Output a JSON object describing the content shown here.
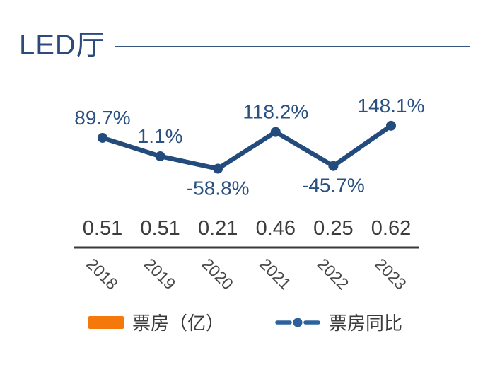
{
  "title": "LED厅",
  "colors": {
    "title_color": "#2C4B7C",
    "rule_color": "#35567F",
    "line_color": "#234C7D",
    "pct_color": "#2A5080",
    "value_color": "#3D3D3D",
    "axis_color": "#3A3A3A",
    "year_color": "#474747",
    "legend_text": "#3B3B3B",
    "bar_swatch": "#F5780A",
    "legend_line": "#2B629B"
  },
  "legend": {
    "bar_label": "票房（亿）",
    "line_label": "票房同比"
  },
  "chart_data": {
    "type": "combo",
    "title": "LED厅",
    "categories": [
      "2018",
      "2019",
      "2020",
      "2021",
      "2022",
      "2023"
    ],
    "series": [
      {
        "name": "票房（亿）",
        "type": "bar",
        "unit": "亿",
        "color": "#F5780A",
        "values": [
          0.51,
          0.51,
          0.21,
          0.46,
          0.25,
          0.62
        ],
        "labels": [
          "0.51",
          "0.51",
          "0.21",
          "0.46",
          "0.25",
          "0.62"
        ],
        "bars_visible": false,
        "shown_as": "data-labels-above-axis"
      },
      {
        "name": "票房同比",
        "type": "line",
        "unit": "%",
        "color": "#234C7D",
        "values": [
          89.7,
          1.1,
          -58.8,
          118.2,
          -45.7,
          148.1
        ],
        "labels": [
          "89.7%",
          "1.1%",
          "-58.8%",
          "118.2%",
          "-45.7%",
          "148.1%"
        ]
      }
    ],
    "grid": false,
    "legend_position": "bottom",
    "x_axis_label_rotation_deg": 45
  }
}
